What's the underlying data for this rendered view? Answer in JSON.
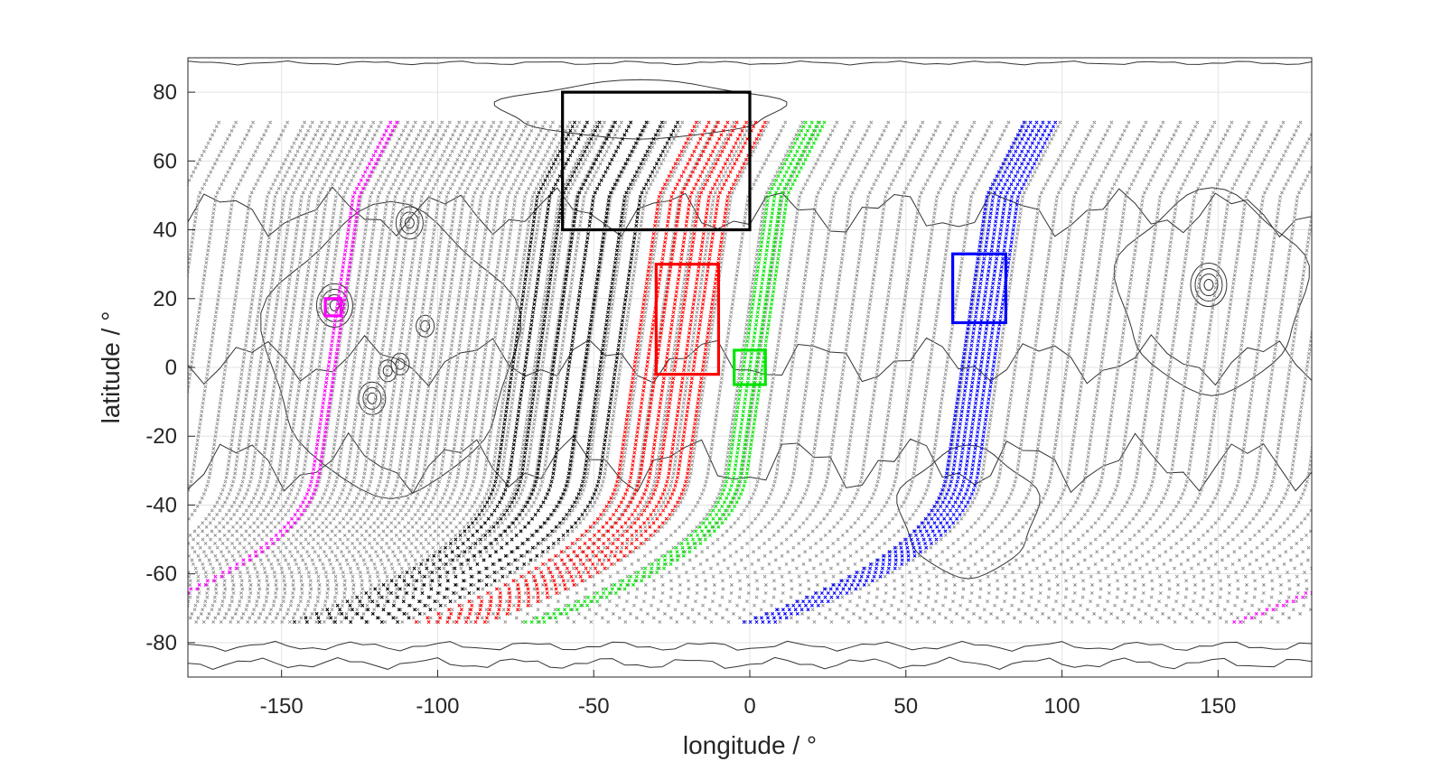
{
  "chart_data": {
    "type": "scatter",
    "title": "",
    "xlabel": "longitude / °",
    "ylabel": "latitude / °",
    "xlim": [
      -180,
      180
    ],
    "ylim": [
      -90,
      90
    ],
    "xticks": [
      -150,
      -100,
      -50,
      0,
      50,
      100,
      150
    ],
    "yticks": [
      -80,
      -60,
      -40,
      -20,
      0,
      20,
      40,
      60,
      80
    ],
    "grid": true,
    "marker": "x",
    "background_map": "topographic contour lines (gray)",
    "colors": {
      "background_tracks": "#8a8a8a",
      "black": "#000000",
      "red": "#ff0000",
      "green": "#00e600",
      "blue": "#0000ff",
      "magenta": "#ff00ff",
      "contour": "#333333"
    },
    "tracks": {
      "lat_range": [
        -74,
        72
      ],
      "background_lon_at_equator_start": -190,
      "background_lon_at_equator_step": 5.5,
      "colored_groups": [
        {
          "color": "black",
          "lon_at_equator": [
            -76,
            -72,
            -68,
            -63,
            -58,
            -53,
            -48,
            -43
          ]
        },
        {
          "color": "red",
          "lon_at_equator": [
            -37,
            -33,
            -30,
            -27,
            -24,
            -21,
            -18,
            -15
          ]
        },
        {
          "color": "green",
          "lon_at_equator": [
            -2,
            0,
            2,
            4
          ]
        },
        {
          "color": "blue",
          "lon_at_equator": [
            68,
            70,
            72,
            74,
            76,
            78
          ]
        },
        {
          "color": "magenta",
          "lon_at_equator": [
            -135,
            -133
          ]
        }
      ]
    },
    "regions": [
      {
        "color": "black",
        "lon": [
          -60,
          0
        ],
        "lat": [
          40,
          80
        ]
      },
      {
        "color": "red",
        "lon": [
          -30,
          -10
        ],
        "lat": [
          -2,
          30
        ]
      },
      {
        "color": "green",
        "lon": [
          -5,
          5
        ],
        "lat": [
          -5,
          5
        ]
      },
      {
        "color": "blue",
        "lon": [
          65,
          82
        ],
        "lat": [
          13,
          33
        ]
      },
      {
        "color": "magenta",
        "lon": [
          -136,
          -131
        ],
        "lat": [
          15,
          20
        ]
      }
    ]
  }
}
